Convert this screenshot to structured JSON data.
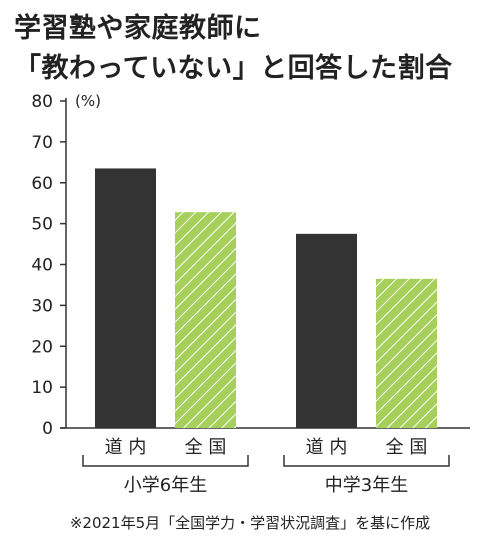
{
  "title_line1": "学習塾や家庭教師に",
  "title_line2": "「教わっていない」と回答した割合",
  "unit_label": "(%)",
  "footnote": "※2021年5月「全国学力・学習状況調査」を基に作成",
  "colors": {
    "hokkaido": "#333333",
    "national": "#a6cf5b",
    "axis": "#333333"
  },
  "chart_data": {
    "type": "bar",
    "groups": [
      "小学6年生",
      "中学3年生"
    ],
    "categories": [
      "道 内",
      "全 国"
    ],
    "series": [
      {
        "name": "道 内",
        "values": [
          63.5,
          47.5
        ],
        "color": "#333333",
        "pattern": "solid"
      },
      {
        "name": "全 国",
        "values": [
          52.8,
          36.5
        ],
        "color": "#a6cf5b",
        "pattern": "hatched"
      }
    ],
    "ylim": [
      0,
      80
    ],
    "yticks": [
      0,
      10,
      20,
      30,
      40,
      50,
      60,
      70,
      80
    ],
    "ylabel": "(%)",
    "grid": false,
    "legend": "none"
  }
}
